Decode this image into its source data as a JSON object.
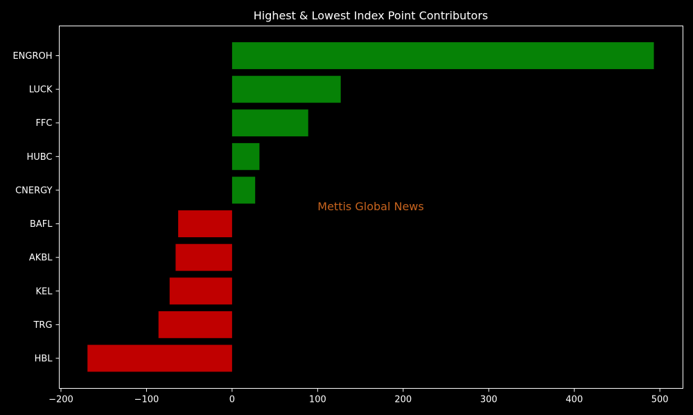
{
  "chart_data": {
    "type": "bar",
    "orientation": "horizontal",
    "title": "Highest & Lowest Index Point Contributors",
    "xlabel": "",
    "ylabel": "",
    "xlim": [
      -202,
      527
    ],
    "x_ticks": [
      -200,
      -100,
      0,
      100,
      200,
      300,
      400,
      500
    ],
    "x_tick_labels": [
      "−200",
      "−100",
      "0",
      "100",
      "200",
      "300",
      "400",
      "500"
    ],
    "grid": false,
    "categories": [
      "ENGROH",
      "LUCK",
      "FFC",
      "HUBC",
      "CNERGY",
      "BAFL",
      "AKBL",
      "KEL",
      "TRG",
      "HBL"
    ],
    "values": [
      493,
      127,
      89,
      32,
      27,
      -63,
      -66,
      -73,
      -86,
      -169
    ],
    "colors": {
      "positive": "#068206",
      "negative": "#c00000",
      "axis": "#ffffff",
      "background": "#000000"
    },
    "annotation": {
      "text": "Mettis Global News",
      "color": "#c8641e"
    }
  }
}
